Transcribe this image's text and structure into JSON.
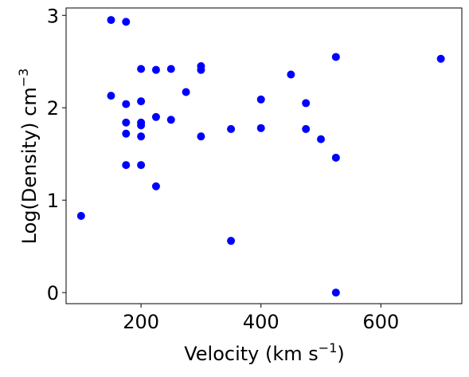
{
  "chart_data": {
    "type": "scatter",
    "xlabel": "Velocity (km s",
    "xlabel_sup": "−1",
    "xlabel_close": ")",
    "ylabel": "Log(Density) cm",
    "ylabel_sup": "−3",
    "xlim": [
      75,
      735
    ],
    "ylim": [
      -0.12,
      3.08
    ],
    "xticks": [
      200,
      400,
      600
    ],
    "yticks": [
      0,
      1,
      2,
      3
    ],
    "xtick_labels": [
      "200",
      "400",
      "600"
    ],
    "ytick_labels": [
      "0",
      "1",
      "2",
      "3"
    ],
    "grid": false,
    "marker_color": "#0000ff",
    "points": [
      {
        "x": 100,
        "y": 0.83
      },
      {
        "x": 150,
        "y": 2.95
      },
      {
        "x": 150,
        "y": 2.13
      },
      {
        "x": 175,
        "y": 2.93
      },
      {
        "x": 175,
        "y": 2.04
      },
      {
        "x": 175,
        "y": 1.84
      },
      {
        "x": 175,
        "y": 1.72
      },
      {
        "x": 175,
        "y": 1.38
      },
      {
        "x": 200,
        "y": 2.42
      },
      {
        "x": 200,
        "y": 2.07
      },
      {
        "x": 200,
        "y": 1.84
      },
      {
        "x": 200,
        "y": 1.81
      },
      {
        "x": 200,
        "y": 1.69
      },
      {
        "x": 200,
        "y": 1.38
      },
      {
        "x": 225,
        "y": 2.41
      },
      {
        "x": 225,
        "y": 1.9
      },
      {
        "x": 225,
        "y": 1.15
      },
      {
        "x": 250,
        "y": 2.42
      },
      {
        "x": 250,
        "y": 1.87
      },
      {
        "x": 275,
        "y": 2.17
      },
      {
        "x": 300,
        "y": 2.45
      },
      {
        "x": 300,
        "y": 2.41
      },
      {
        "x": 300,
        "y": 1.69
      },
      {
        "x": 350,
        "y": 1.77
      },
      {
        "x": 350,
        "y": 0.56
      },
      {
        "x": 400,
        "y": 2.09
      },
      {
        "x": 400,
        "y": 1.78
      },
      {
        "x": 450,
        "y": 2.36
      },
      {
        "x": 475,
        "y": 2.05
      },
      {
        "x": 475,
        "y": 1.77
      },
      {
        "x": 500,
        "y": 1.66
      },
      {
        "x": 525,
        "y": 2.55
      },
      {
        "x": 525,
        "y": 1.46
      },
      {
        "x": 525,
        "y": 0.0
      },
      {
        "x": 700,
        "y": 2.53
      }
    ]
  }
}
